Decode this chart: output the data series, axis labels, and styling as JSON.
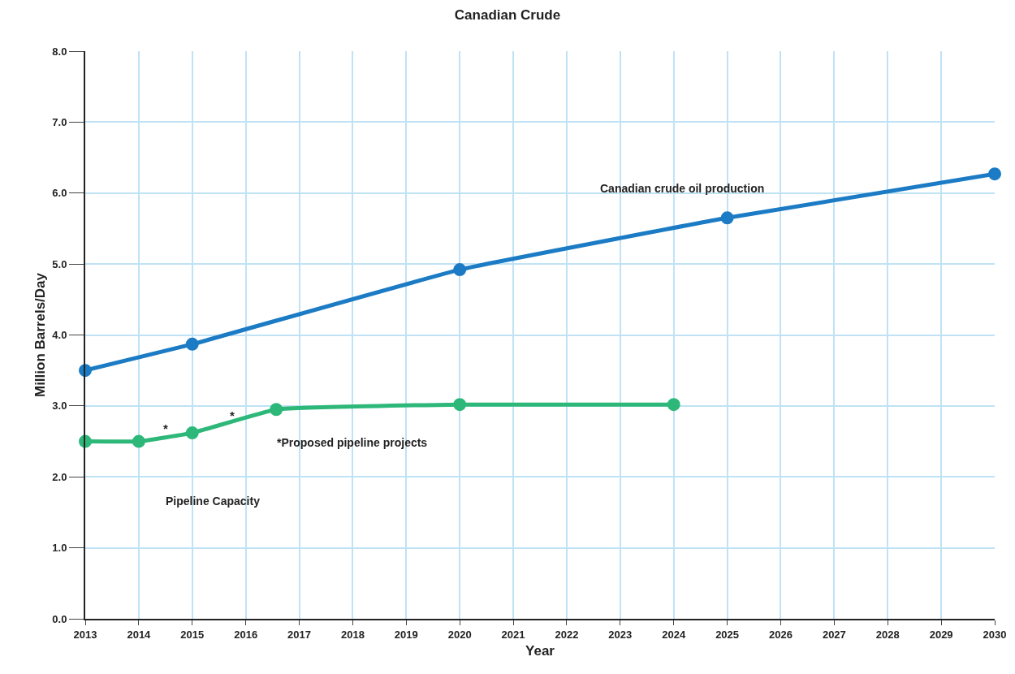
{
  "chart_data": {
    "type": "line",
    "title": "Canadian Crude",
    "xlabel": "Year",
    "ylabel": "Million Barrels/Day",
    "series": [
      {
        "color": "#1b7bc4",
        "x": [
          2013,
          2015,
          2020,
          2025,
          2030
        ],
        "values": [
          3.5,
          3.87,
          4.92,
          5.65,
          6.27
        ]
      },
      {
        "color": "#2db87a",
        "x": [
          2013,
          2014,
          2015,
          2016.57,
          2020,
          2024
        ],
        "values": [
          2.5,
          2.5,
          2.62,
          2.95,
          3.02,
          3.02
        ]
      }
    ],
    "xlim": [
      2013,
      2030
    ],
    "xticks": [
      2013,
      2014,
      2015,
      2016,
      2017,
      2018,
      2019,
      2020,
      2021,
      2022,
      2023,
      2024,
      2025,
      2026,
      2027,
      2028,
      2029,
      2030
    ],
    "ylim": [
      0,
      8
    ],
    "yticks": [
      {
        "value": 0,
        "label": "0.0"
      },
      {
        "value": 1,
        "label": "1.0"
      },
      {
        "value": 2,
        "label": "2.0"
      },
      {
        "value": 3,
        "label": "3.0"
      },
      {
        "value": 4,
        "label": "4.0"
      },
      {
        "value": 5,
        "label": "5.0"
      },
      {
        "value": 6,
        "label": "6.0"
      },
      {
        "value": 7,
        "label": "7.0"
      },
      {
        "value": 8,
        "label": "8.0"
      }
    ],
    "grid": true,
    "marker": "circle",
    "line_style": "solid",
    "annotations": [
      "Canadian crude oil production",
      "Pipeline Capacity",
      "*Proposed pipeline projects",
      "*",
      "*"
    ]
  }
}
